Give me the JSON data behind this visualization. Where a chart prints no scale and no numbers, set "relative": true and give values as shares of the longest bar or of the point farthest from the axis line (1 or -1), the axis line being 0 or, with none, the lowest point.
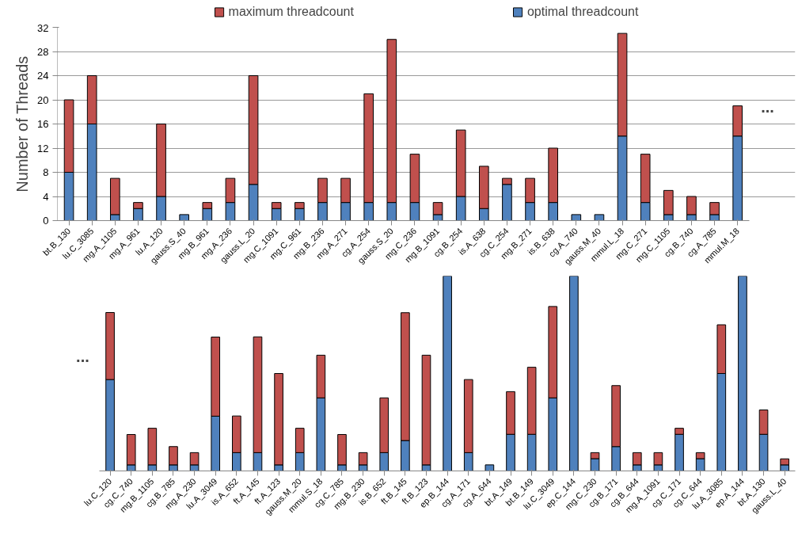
{
  "chart_data": [
    {
      "type": "bar",
      "stacked": true,
      "ylabel": "Number of Threads",
      "ylim": [
        0,
        32
      ],
      "yticks": [
        0,
        4,
        8,
        12,
        16,
        20,
        24,
        28,
        32
      ],
      "grid": "y",
      "legend": "top",
      "annotations": [
        "..."
      ],
      "categories": [
        "bt.B_130",
        "lu.C_3085",
        "mg.A_1105",
        "mg.A_961",
        "lu.A_120",
        "gauss.S_40",
        "mg.B_961",
        "mg.A_236",
        "gauss.L_20",
        "mg.C_1091",
        "mg.C_961",
        "mg.B_236",
        "mg.A_271",
        "cg.A_254",
        "gauss.S_20",
        "mg.C_236",
        "mg.B_1091",
        "cg.B_254",
        "is.A_638",
        "cg.C_254",
        "mg.B_271",
        "is.B_638",
        "cg.A_740",
        "gauss.M_40",
        "mmul.L_18",
        "mg.C_271",
        "mg.C_1105",
        "cg.B_740",
        "cg.A_785",
        "mmul.M_18"
      ],
      "series": [
        {
          "name": "optimal threadcount",
          "color": "#4f81bd",
          "values": [
            8,
            16,
            1,
            2,
            4,
            1,
            2,
            3,
            6,
            2,
            2,
            3,
            3,
            3,
            3,
            3,
            1,
            4,
            2,
            6,
            3,
            3,
            1,
            1,
            14,
            3,
            1,
            1,
            1,
            14
          ]
        },
        {
          "name": "maximum threadcount",
          "color": "#c0504d",
          "values": [
            12,
            8,
            6,
            1,
            12,
            null,
            1,
            4,
            18,
            1,
            1,
            4,
            4,
            18,
            27,
            8,
            2,
            11,
            7,
            1,
            4,
            9,
            null,
            null,
            17,
            8,
            4,
            3,
            2,
            5
          ]
        }
      ]
    },
    {
      "type": "bar",
      "stacked": true,
      "relative": true,
      "annotations": [
        "..."
      ],
      "categories": [
        "lu.C_120",
        "cg.C_740",
        "mg.B_1105",
        "cg.B_785",
        "mg.A_230",
        "lu.A_3049",
        "is.A_652",
        "ft.A_145",
        "ft.A_123",
        "gauss.M_20",
        "mmul.S_18",
        "cg.C_785",
        "mg.B_230",
        "is.B_652",
        "ft.B_145",
        "ft.B_123",
        "ep.B_144",
        "cg.A_171",
        "cg.A_644",
        "bt.A_149",
        "bt.B_149",
        "lu.C_3049",
        "ep.C_144",
        "mg.C_230",
        "cg.B_171",
        "cg.B_644",
        "mg.A_1091",
        "cg.C_171",
        "cg.C_644",
        "lu.A_3085",
        "ep.A_144",
        "bt.A_130",
        "gauss.L_40"
      ],
      "series": [
        {
          "color": "#4f81bd",
          "values": [
            0.469,
            0.031,
            0.031,
            0.031,
            0.031,
            0.281,
            0.094,
            0.094,
            0.031,
            0.094,
            0.375,
            0.031,
            0.031,
            0.094,
            0.156,
            0.031,
            1,
            0.094,
            0.031,
            0.188,
            0.188,
            0.375,
            1,
            0.063,
            0.125,
            0.031,
            0.031,
            0.188,
            0.063,
            0.5,
            1,
            0.188,
            0.031
          ]
        },
        {
          "color": "#c0504d",
          "values": [
            0.344,
            0.156,
            0.188,
            0.094,
            0.063,
            0.406,
            0.188,
            0.594,
            0.469,
            0.125,
            0.219,
            0.156,
            0.063,
            0.281,
            0.656,
            0.563,
            null,
            0.375,
            null,
            0.219,
            0.344,
            0.469,
            null,
            0.031,
            0.313,
            0.063,
            0.063,
            0.031,
            0.031,
            0.25,
            null,
            0.125,
            0.031
          ]
        }
      ]
    }
  ]
}
